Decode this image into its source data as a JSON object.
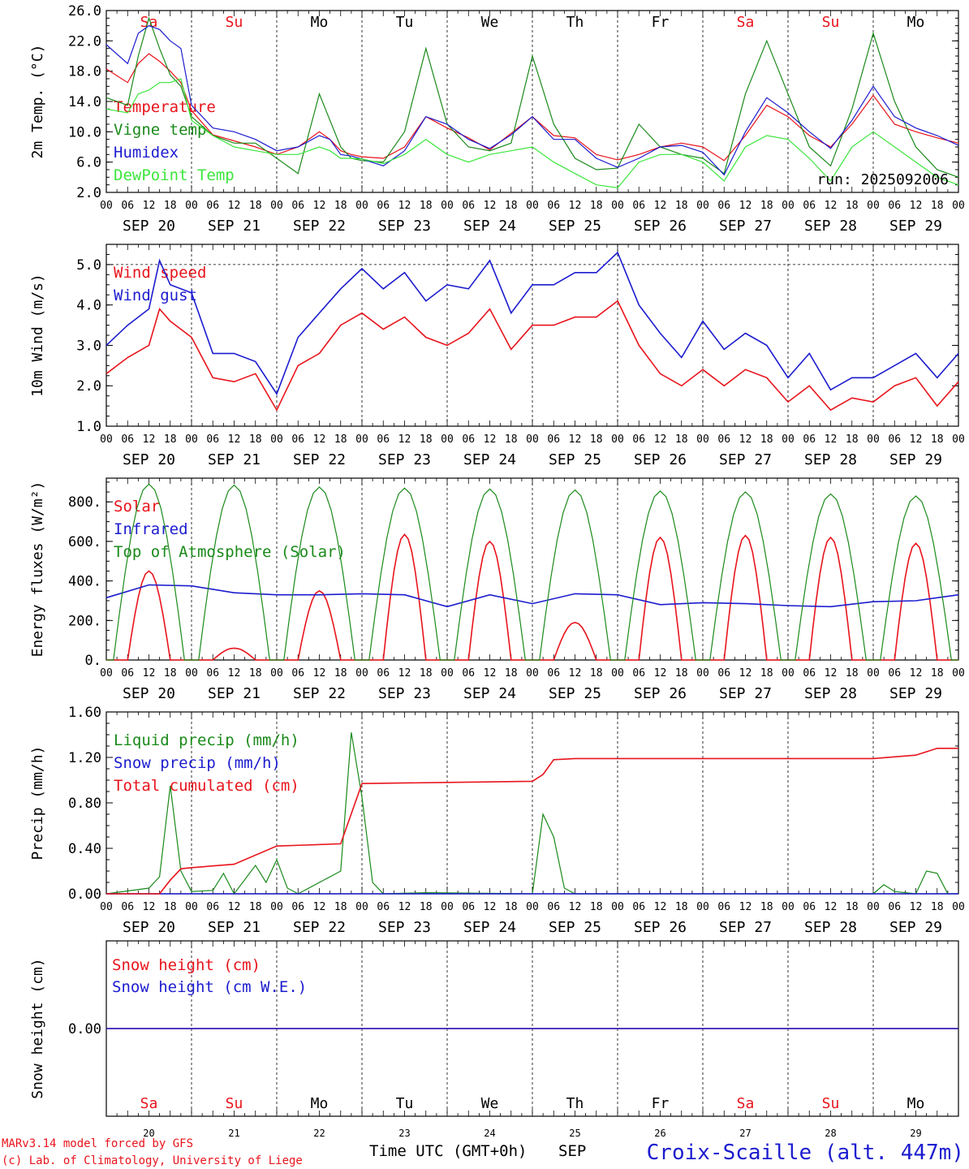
{
  "colors": {
    "red": "#e8141c",
    "green": "#1a8a1a",
    "blue": "#1c1ccf",
    "lime": "#3ce63c",
    "axis": "#000000"
  },
  "days": {
    "abbr": [
      "Sa",
      "Su",
      "Mo",
      "Tu",
      "We",
      "Th",
      "Fr",
      "Sa",
      "Su",
      "Mo"
    ],
    "weekend": [
      true,
      true,
      false,
      false,
      false,
      false,
      false,
      true,
      true,
      false
    ],
    "numbers": [
      "20",
      "21",
      "22",
      "23",
      "24",
      "25",
      "26",
      "27",
      "28",
      "29"
    ],
    "date_labels": [
      "SEP 20",
      "SEP 21",
      "SEP 22",
      "SEP 23",
      "SEP 24",
      "SEP 25",
      "SEP 26",
      "SEP 27",
      "SEP 28",
      "SEP 29"
    ],
    "hour_ticks": [
      "00",
      "06",
      "12",
      "18"
    ],
    "end_tick": "00"
  },
  "footer": {
    "credit1": "MARv3.14 model forced by GFS",
    "credit2": "(c) Lab. of Climatology, University of Liege",
    "xlabel": "Time UTC (GMT+0h)",
    "month": "SEP",
    "station": "Croix-Scaille (alt. 447m)"
  },
  "chart_data": [
    {
      "id": "temp",
      "type": "line",
      "ylabel": "2m Temp. (°C)",
      "ylim": [
        2,
        26
      ],
      "yticks": [
        "2.0",
        "6.0",
        "10.0",
        "14.0",
        "18.0",
        "22.0",
        "26.0"
      ],
      "annotation": "run: 2025092006",
      "x_hours": [
        0,
        6,
        9,
        12,
        15,
        18,
        21,
        24,
        30,
        36,
        42,
        48,
        54,
        60,
        63,
        66,
        69,
        72,
        78,
        84,
        90,
        96,
        102,
        108,
        114,
        120,
        126,
        132,
        138,
        144,
        150,
        156,
        162,
        168,
        174,
        180,
        186,
        192,
        198,
        204,
        210,
        216,
        222,
        228,
        234,
        240
      ],
      "series": [
        {
          "name": "Temperature",
          "color": "red",
          "values": [
            18.3,
            16.5,
            19.0,
            20.3,
            19.3,
            18.0,
            16.5,
            12.8,
            9.6,
            8.8,
            8.0,
            7.0,
            8.0,
            10.0,
            9.0,
            7.5,
            7.0,
            6.7,
            6.5,
            8.0,
            12.0,
            10.5,
            9.2,
            7.6,
            9.8,
            12.0,
            9.5,
            9.2,
            7.0,
            6.3,
            7.0,
            8.0,
            8.5,
            8.0,
            6.2,
            9.5,
            13.5,
            12.0,
            9.5,
            8.0,
            11.0,
            14.8,
            11.0,
            10.0,
            9.2,
            8.5
          ]
        },
        {
          "name": "Vigne temp",
          "color": "green",
          "values": [
            14.5,
            13.5,
            20.0,
            25.0,
            21.0,
            17.5,
            16.0,
            12.0,
            9.5,
            8.5,
            8.5,
            6.5,
            4.5,
            15.0,
            11.5,
            8.0,
            6.5,
            6.2,
            6.0,
            10.0,
            21.0,
            11.0,
            8.0,
            7.5,
            8.5,
            20.0,
            11.0,
            6.5,
            5.0,
            5.2,
            11.0,
            8.0,
            7.0,
            6.5,
            4.5,
            15.0,
            22.0,
            15.0,
            8.0,
            5.5,
            13.0,
            23.0,
            14.0,
            8.0,
            5.0,
            4.0
          ]
        },
        {
          "name": "Humidex",
          "color": "blue",
          "values": [
            21.5,
            19.0,
            23.0,
            24.0,
            23.5,
            22.0,
            21.0,
            13.5,
            10.5,
            10.0,
            9.0,
            7.5,
            8.0,
            9.5,
            9.0,
            7.0,
            6.8,
            6.4,
            5.5,
            7.5,
            12.0,
            11.0,
            9.0,
            7.8,
            9.6,
            12.0,
            9.0,
            9.0,
            6.5,
            5.3,
            6.5,
            8.0,
            8.2,
            7.3,
            4.3,
            10.0,
            14.5,
            12.5,
            10.0,
            7.8,
            11.5,
            16.0,
            12.0,
            10.5,
            9.5,
            8.2
          ]
        },
        {
          "name": "DewPoint Temp",
          "color": "lime",
          "values": [
            13.0,
            12.5,
            15.0,
            15.5,
            16.5,
            16.5,
            17.0,
            11.5,
            9.5,
            8.0,
            7.5,
            7.0,
            7.0,
            8.0,
            7.5,
            6.5,
            6.5,
            6.4,
            5.8,
            7.0,
            9.0,
            7.0,
            6.0,
            7.0,
            7.5,
            8.0,
            6.0,
            4.5,
            3.0,
            2.6,
            6.0,
            7.0,
            7.0,
            6.0,
            3.5,
            8.0,
            9.5,
            9.0,
            6.5,
            3.5,
            8.0,
            10.0,
            8.0,
            6.0,
            4.0,
            3.0
          ]
        }
      ]
    },
    {
      "id": "wind",
      "type": "line",
      "ylabel": "10m Wind (m/s)",
      "ylim": [
        1,
        5.5
      ],
      "yticks": [
        "1.0",
        "2.0",
        "3.0",
        "4.0",
        "5.0"
      ],
      "reference_line": 5.0,
      "x_hours": [
        0,
        6,
        12,
        15,
        18,
        24,
        30,
        36,
        42,
        48,
        54,
        60,
        66,
        72,
        78,
        84,
        90,
        96,
        102,
        108,
        114,
        120,
        126,
        132,
        138,
        144,
        150,
        156,
        162,
        168,
        174,
        180,
        186,
        192,
        198,
        204,
        210,
        216,
        222,
        228,
        234,
        240
      ],
      "series": [
        {
          "name": "Wind speed",
          "color": "red",
          "values": [
            2.3,
            2.7,
            3.0,
            3.9,
            3.6,
            3.2,
            2.2,
            2.1,
            2.3,
            1.4,
            2.5,
            2.8,
            3.5,
            3.8,
            3.4,
            3.7,
            3.2,
            3.0,
            3.3,
            3.9,
            2.9,
            3.5,
            3.5,
            3.7,
            3.7,
            4.1,
            3.0,
            2.3,
            2.0,
            2.4,
            2.0,
            2.4,
            2.2,
            1.6,
            2.0,
            1.4,
            1.7,
            1.6,
            2.0,
            2.2,
            1.5,
            2.1
          ]
        },
        {
          "name": "Wind gust",
          "color": "blue",
          "values": [
            3.0,
            3.5,
            3.9,
            5.1,
            4.5,
            4.3,
            2.8,
            2.8,
            2.6,
            1.8,
            3.2,
            3.8,
            4.4,
            4.9,
            4.4,
            4.8,
            4.1,
            4.5,
            4.4,
            5.1,
            3.8,
            4.5,
            4.5,
            4.8,
            4.8,
            5.3,
            4.0,
            3.3,
            2.7,
            3.6,
            2.9,
            3.3,
            3.0,
            2.2,
            2.8,
            1.9,
            2.2,
            2.2,
            2.5,
            2.8,
            2.2,
            2.8
          ]
        }
      ]
    },
    {
      "id": "energy",
      "type": "line",
      "ylabel": "Energy fluxes (W/m²)",
      "ylim": [
        0,
        920
      ],
      "yticks": [
        "0.",
        "200.",
        "400.",
        "600.",
        "800."
      ],
      "series": [
        {
          "name": "Solar",
          "color": "red",
          "daily_peaks": [
            450,
            60,
            350,
            635,
            600,
            190,
            620,
            630,
            620,
            590
          ]
        },
        {
          "name": "Infrared",
          "color": "blue",
          "x_hours": [
            0,
            12,
            24,
            36,
            48,
            60,
            72,
            84,
            96,
            108,
            120,
            132,
            144,
            156,
            168,
            180,
            192,
            204,
            216,
            228,
            240
          ],
          "values": [
            315,
            380,
            375,
            340,
            330,
            330,
            335,
            330,
            270,
            330,
            285,
            335,
            330,
            280,
            290,
            285,
            275,
            270,
            295,
            300,
            330
          ]
        },
        {
          "name": "Top of Atmosphere (Solar)",
          "color": "green",
          "daily_peaks": [
            890,
            885,
            875,
            870,
            865,
            860,
            855,
            850,
            840,
            830
          ]
        }
      ]
    },
    {
      "id": "precip",
      "type": "line",
      "ylabel": "Precip (mm/h)",
      "ylim": [
        0,
        1.6
      ],
      "yticks": [
        "0.00",
        "0.40",
        "0.80",
        "1.20",
        "1.60"
      ],
      "series": [
        {
          "name": "Liquid precip (mm/h)",
          "color": "green",
          "x_hours": [
            0,
            12,
            15,
            18,
            21,
            24,
            30,
            33,
            36,
            42,
            45,
            48,
            51,
            54,
            66,
            69,
            72,
            75,
            78,
            90,
            120,
            123,
            126,
            129,
            132,
            180,
            216,
            219,
            222,
            228,
            231,
            234,
            237,
            240
          ],
          "values": [
            0,
            0.05,
            0.15,
            0.95,
            0.2,
            0.02,
            0.03,
            0.18,
            0,
            0.25,
            0.1,
            0.3,
            0.05,
            0,
            0.2,
            1.42,
            0.85,
            0.1,
            0,
            0.01,
            0,
            0.7,
            0.5,
            0.05,
            0,
            0,
            0,
            0.08,
            0.02,
            0,
            0.2,
            0.18,
            0,
            0
          ]
        },
        {
          "name": "Snow precip (mm/h)",
          "color": "blue",
          "x_hours": [
            0,
            240
          ],
          "values": [
            0,
            0
          ]
        },
        {
          "name": "Total cumulated (cm)",
          "color": "red",
          "x_hours": [
            0,
            15,
            18,
            21,
            24,
            36,
            48,
            66,
            72,
            96,
            120,
            123,
            126,
            132,
            216,
            228,
            234,
            240
          ],
          "values": [
            0,
            0,
            0.12,
            0.22,
            0.23,
            0.26,
            0.42,
            0.44,
            0.97,
            0.98,
            0.99,
            1.05,
            1.18,
            1.19,
            1.19,
            1.22,
            1.28,
            1.28
          ]
        }
      ]
    },
    {
      "id": "snow",
      "type": "line",
      "ylabel": "Snow height (cm)",
      "ylim": [
        -1,
        1
      ],
      "yticks": [
        "0.00"
      ],
      "series": [
        {
          "name": "Snow height (cm)",
          "color": "red",
          "x_hours": [
            0,
            240
          ],
          "values": [
            0,
            0
          ]
        },
        {
          "name": "Snow height (cm W.E.)",
          "color": "blue",
          "x_hours": [
            0,
            240
          ],
          "values": [
            0,
            0
          ]
        }
      ]
    }
  ]
}
